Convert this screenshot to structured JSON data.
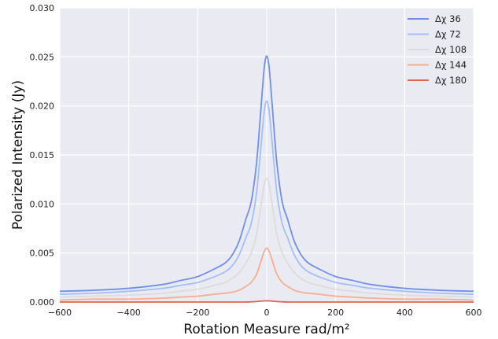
{
  "chart_data": {
    "type": "line",
    "title": "",
    "xlabel": "Rotation Measure rad/m²",
    "ylabel": "Polarized Intensity (Jy)",
    "xlim": [
      -600,
      600
    ],
    "ylim": [
      0,
      0.03
    ],
    "x_ticks": [
      -600,
      -400,
      -200,
      0,
      200,
      400,
      600
    ],
    "x_tick_labels": [
      "−600",
      "−400",
      "−200",
      "0",
      "200",
      "400",
      "600"
    ],
    "y_ticks": [
      0,
      0.005,
      0.01,
      0.015,
      0.02,
      0.025,
      0.03
    ],
    "y_tick_labels": [
      "0.000",
      "0.005",
      "0.010",
      "0.015",
      "0.020",
      "0.025",
      "0.030"
    ],
    "grid": true,
    "background": "#eaeaf2",
    "legend": {
      "placement": "top-right"
    },
    "x": [
      -600,
      -500,
      -400,
      -300,
      -250,
      -200,
      -150,
      -120,
      -100,
      -80,
      -60,
      -45,
      -30,
      -20,
      -10,
      -5,
      0,
      5,
      10,
      20,
      30,
      45,
      60,
      80,
      100,
      120,
      150,
      200,
      250,
      300,
      400,
      500,
      600
    ],
    "series": [
      {
        "name": "Δχ 36",
        "color": "#6f8fe9",
        "values": [
          0.0011,
          0.0012,
          0.0014,
          0.0018,
          0.0022,
          0.0026,
          0.0034,
          0.004,
          0.0048,
          0.0062,
          0.0085,
          0.0102,
          0.014,
          0.0182,
          0.0228,
          0.0245,
          0.0251,
          0.0245,
          0.0228,
          0.0182,
          0.014,
          0.0102,
          0.0085,
          0.0062,
          0.0048,
          0.004,
          0.0034,
          0.0026,
          0.0022,
          0.0018,
          0.0014,
          0.0012,
          0.0011
        ]
      },
      {
        "name": "Δχ 72",
        "color": "#a3c0f6",
        "values": [
          0.0008,
          0.0009,
          0.0011,
          0.0014,
          0.0017,
          0.002,
          0.0026,
          0.0031,
          0.0037,
          0.0048,
          0.0066,
          0.008,
          0.011,
          0.0146,
          0.0185,
          0.02,
          0.0205,
          0.02,
          0.0185,
          0.0146,
          0.011,
          0.008,
          0.0066,
          0.0048,
          0.0037,
          0.0031,
          0.0026,
          0.002,
          0.0017,
          0.0014,
          0.0011,
          0.0009,
          0.0008
        ]
      },
      {
        "name": "Δχ 108",
        "color": "#dcdcdc",
        "values": [
          0.0005,
          0.0006,
          0.0007,
          0.0009,
          0.0011,
          0.0013,
          0.0017,
          0.002,
          0.0024,
          0.003,
          0.004,
          0.005,
          0.0068,
          0.009,
          0.0114,
          0.0123,
          0.0126,
          0.0123,
          0.0114,
          0.009,
          0.0068,
          0.005,
          0.004,
          0.003,
          0.0024,
          0.002,
          0.0017,
          0.0013,
          0.0011,
          0.0009,
          0.0007,
          0.0006,
          0.0005
        ]
      },
      {
        "name": "Δχ 144",
        "color": "#f6ad90",
        "values": [
          0.0002,
          0.0003,
          0.0003,
          0.0004,
          0.0005,
          0.0006,
          0.0008,
          0.0009,
          0.001,
          0.0012,
          0.0016,
          0.002,
          0.0028,
          0.0038,
          0.0049,
          0.0053,
          0.0055,
          0.0053,
          0.0049,
          0.0038,
          0.0028,
          0.002,
          0.0016,
          0.0012,
          0.001,
          0.0009,
          0.0008,
          0.0006,
          0.0005,
          0.0004,
          0.0003,
          0.0003,
          0.0002
        ]
      },
      {
        "name": "Δχ 180",
        "color": "#e0654f",
        "values": [
          0.0,
          0.0,
          0.0,
          0.0,
          0.0,
          0.0,
          0.0,
          0.0,
          0.0,
          0.0,
          0.0,
          2e-05,
          5e-05,
          8e-05,
          0.00011,
          0.00012,
          0.00012,
          0.00012,
          0.00011,
          8e-05,
          5e-05,
          2e-05,
          0.0,
          0.0,
          0.0,
          0.0,
          0.0,
          0.0,
          0.0,
          0.0,
          0.0,
          0.0,
          0.0
        ]
      }
    ]
  }
}
